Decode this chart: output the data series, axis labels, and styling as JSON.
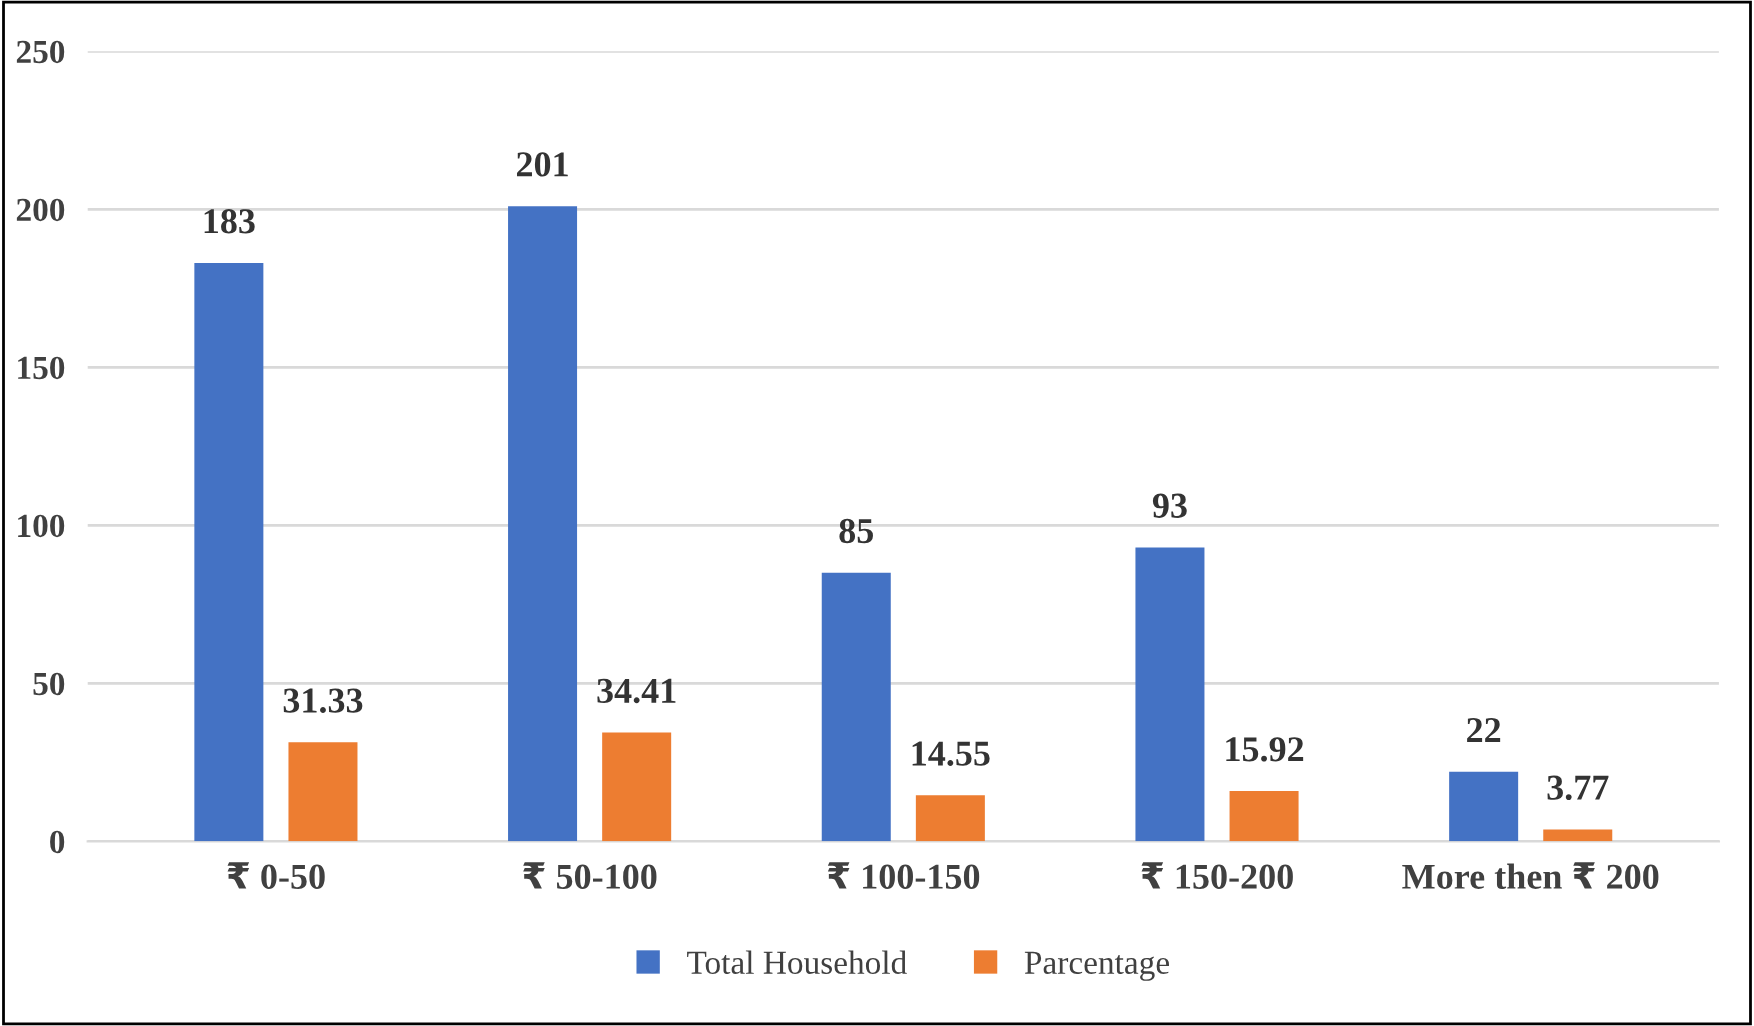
{
  "chart_data": {
    "type": "bar",
    "categories": [
      "₹ 0-50",
      "₹ 50-100",
      "₹ 100-150",
      "₹ 150-200",
      "More then ₹ 200"
    ],
    "series": [
      {
        "name": "Total Household",
        "color": "#4472c4",
        "values": [
          183,
          201,
          85,
          93,
          22
        ]
      },
      {
        "name": "Parcentage",
        "color": "#ed7d31",
        "values": [
          31.33,
          34.41,
          14.55,
          15.92,
          3.77
        ]
      }
    ],
    "ylim": [
      0,
      250
    ],
    "yticks": [
      0,
      50,
      100,
      150,
      200,
      250
    ],
    "grid": "y",
    "legend": "bottom",
    "data_labels": true
  }
}
